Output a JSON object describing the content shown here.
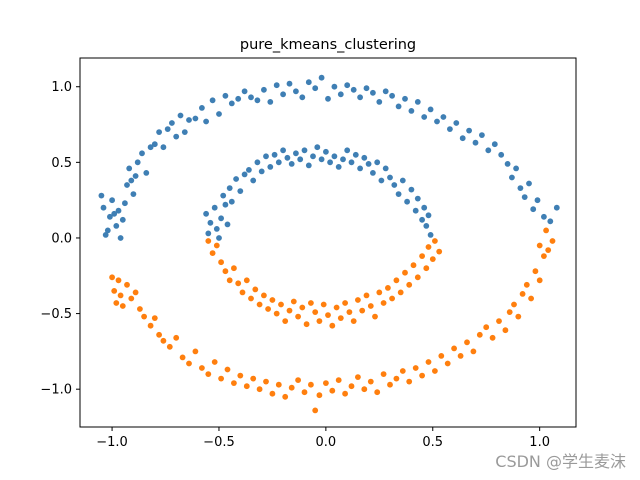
{
  "chart_data": {
    "type": "scatter",
    "title": "pure_kmeans_clustering",
    "xlabel": "",
    "ylabel": "",
    "xlim": [
      -1.15,
      1.17
    ],
    "ylim": [
      -1.25,
      1.19
    ],
    "x_ticks": [
      -1.0,
      -0.5,
      0.0,
      0.5,
      1.0
    ],
    "x_tick_labels": [
      "−1.0",
      "−0.5",
      "0.0",
      "0.5",
      "1.0"
    ],
    "y_ticks": [
      -1.0,
      -0.5,
      0.0,
      0.5,
      1.0
    ],
    "y_tick_labels": [
      "−1.0",
      "−0.5",
      "0.0",
      "0.5",
      "1.0"
    ],
    "grid": false,
    "legend": "none",
    "series": [
      {
        "color": "#3f7fb4",
        "points": [
          [
            -1.05,
            0.28
          ],
          [
            -1.04,
            0.2
          ],
          [
            -1.03,
            0.02
          ],
          [
            -1.02,
            0.05
          ],
          [
            -1.01,
            0.14
          ],
          [
            -1.0,
            0.25
          ],
          [
            -0.99,
            0.16
          ],
          [
            -0.98,
            0.08
          ],
          [
            -0.97,
            0.18
          ],
          [
            -0.96,
            0.0
          ],
          [
            -0.95,
            0.12
          ],
          [
            -0.94,
            0.23
          ],
          [
            -0.93,
            0.35
          ],
          [
            -0.92,
            0.46
          ],
          [
            -0.91,
            0.38
          ],
          [
            -0.9,
            0.29
          ],
          [
            -0.89,
            0.41
          ],
          [
            -0.88,
            0.5
          ],
          [
            -0.86,
            0.56
          ],
          [
            -0.84,
            0.43
          ],
          [
            -0.82,
            0.6
          ],
          [
            -0.8,
            0.62
          ],
          [
            -0.78,
            0.7
          ],
          [
            -0.76,
            0.6
          ],
          [
            -0.74,
            0.72
          ],
          [
            -0.72,
            0.76
          ],
          [
            -0.7,
            0.67
          ],
          [
            -0.68,
            0.81
          ],
          [
            -0.66,
            0.7
          ],
          [
            -0.64,
            0.78
          ],
          [
            -0.61,
            0.79
          ],
          [
            -0.58,
            0.86
          ],
          [
            -0.56,
            0.77
          ],
          [
            -0.53,
            0.91
          ],
          [
            -0.5,
            0.82
          ],
          [
            -0.47,
            0.94
          ],
          [
            -0.44,
            0.89
          ],
          [
            -0.41,
            0.92
          ],
          [
            -0.38,
            0.97
          ],
          [
            -0.35,
            0.93
          ],
          [
            -0.32,
            0.91
          ],
          [
            -0.29,
            0.98
          ],
          [
            -0.26,
            0.9
          ],
          [
            -0.23,
            1.01
          ],
          [
            -0.2,
            0.95
          ],
          [
            -0.17,
            1.02
          ],
          [
            -0.14,
            0.97
          ],
          [
            -0.11,
            0.93
          ],
          [
            -0.08,
            1.03
          ],
          [
            -0.05,
            0.99
          ],
          [
            -0.02,
            1.06
          ],
          [
            0.01,
            0.92
          ],
          [
            0.04,
            1.0
          ],
          [
            0.07,
            0.95
          ],
          [
            0.1,
            1.01
          ],
          [
            0.13,
            0.98
          ],
          [
            0.16,
            0.93
          ],
          [
            0.19,
            0.99
          ],
          [
            0.22,
            0.96
          ],
          [
            0.25,
            0.9
          ],
          [
            0.28,
            0.97
          ],
          [
            0.31,
            0.94
          ],
          [
            0.34,
            0.87
          ],
          [
            0.37,
            0.92
          ],
          [
            0.4,
            0.84
          ],
          [
            0.43,
            0.9
          ],
          [
            0.46,
            0.8
          ],
          [
            0.49,
            0.85
          ],
          [
            0.52,
            0.77
          ],
          [
            0.55,
            0.8
          ],
          [
            0.58,
            0.72
          ],
          [
            0.61,
            0.76
          ],
          [
            0.64,
            0.66
          ],
          [
            0.67,
            0.71
          ],
          [
            0.7,
            0.63
          ],
          [
            0.73,
            0.68
          ],
          [
            0.76,
            0.58
          ],
          [
            0.79,
            0.62
          ],
          [
            0.82,
            0.55
          ],
          [
            0.85,
            0.49
          ],
          [
            0.87,
            0.4
          ],
          [
            0.89,
            0.46
          ],
          [
            0.91,
            0.33
          ],
          [
            0.93,
            0.27
          ],
          [
            0.95,
            0.36
          ],
          [
            0.97,
            0.19
          ],
          [
            0.99,
            0.25
          ],
          [
            1.02,
            0.14
          ],
          [
            1.05,
            0.11
          ],
          [
            1.08,
            0.2
          ],
          [
            -0.56,
            0.16
          ],
          [
            -0.55,
            0.03
          ],
          [
            -0.54,
            0.1
          ],
          [
            -0.52,
            0.2
          ],
          [
            -0.51,
            0.06
          ],
          [
            -0.5,
            0.0
          ],
          [
            -0.49,
            0.13
          ],
          [
            -0.48,
            0.28
          ],
          [
            -0.47,
            0.22
          ],
          [
            -0.46,
            0.09
          ],
          [
            -0.45,
            0.33
          ],
          [
            -0.44,
            0.24
          ],
          [
            -0.42,
            0.39
          ],
          [
            -0.4,
            0.31
          ],
          [
            -0.38,
            0.42
          ],
          [
            -0.36,
            0.45
          ],
          [
            -0.34,
            0.38
          ],
          [
            -0.32,
            0.5
          ],
          [
            -0.3,
            0.44
          ],
          [
            -0.28,
            0.54
          ],
          [
            -0.26,
            0.47
          ],
          [
            -0.24,
            0.55
          ],
          [
            -0.22,
            0.5
          ],
          [
            -0.2,
            0.58
          ],
          [
            -0.18,
            0.53
          ],
          [
            -0.16,
            0.49
          ],
          [
            -0.14,
            0.56
          ],
          [
            -0.12,
            0.52
          ],
          [
            -0.1,
            0.58
          ],
          [
            -0.08,
            0.48
          ],
          [
            -0.06,
            0.54
          ],
          [
            -0.04,
            0.6
          ],
          [
            -0.02,
            0.52
          ],
          [
            0.0,
            0.57
          ],
          [
            0.02,
            0.5
          ],
          [
            0.04,
            0.54
          ],
          [
            0.06,
            0.47
          ],
          [
            0.08,
            0.52
          ],
          [
            0.1,
            0.58
          ],
          [
            0.12,
            0.5
          ],
          [
            0.14,
            0.55
          ],
          [
            0.16,
            0.46
          ],
          [
            0.18,
            0.53
          ],
          [
            0.2,
            0.49
          ],
          [
            0.22,
            0.43
          ],
          [
            0.24,
            0.5
          ],
          [
            0.26,
            0.38
          ],
          [
            0.28,
            0.46
          ],
          [
            0.3,
            0.4
          ],
          [
            0.32,
            0.35
          ],
          [
            0.34,
            0.29
          ],
          [
            0.36,
            0.38
          ],
          [
            0.38,
            0.24
          ],
          [
            0.4,
            0.32
          ],
          [
            0.42,
            0.18
          ],
          [
            0.43,
            0.26
          ],
          [
            0.45,
            0.12
          ],
          [
            0.46,
            0.2
          ],
          [
            0.47,
            0.08
          ],
          [
            0.48,
            0.15
          ],
          [
            0.49,
            0.02
          ]
        ]
      },
      {
        "color": "#ff7f0e",
        "points": [
          [
            -1.0,
            -0.26
          ],
          [
            -0.99,
            -0.35
          ],
          [
            -0.98,
            -0.43
          ],
          [
            -0.97,
            -0.28
          ],
          [
            -0.96,
            -0.38
          ],
          [
            -0.95,
            -0.45
          ],
          [
            -0.93,
            -0.31
          ],
          [
            -0.91,
            -0.4
          ],
          [
            -0.89,
            -0.36
          ],
          [
            -0.87,
            -0.47
          ],
          [
            -0.85,
            -0.52
          ],
          [
            -0.82,
            -0.58
          ],
          [
            -0.8,
            -0.53
          ],
          [
            -0.78,
            -0.64
          ],
          [
            -0.76,
            -0.68
          ],
          [
            -0.73,
            -0.72
          ],
          [
            -0.7,
            -0.66
          ],
          [
            -0.67,
            -0.79
          ],
          [
            -0.64,
            -0.83
          ],
          [
            -0.61,
            -0.75
          ],
          [
            -0.58,
            -0.86
          ],
          [
            -0.55,
            -0.9
          ],
          [
            -0.52,
            -0.82
          ],
          [
            -0.49,
            -0.93
          ],
          [
            -0.46,
            -0.87
          ],
          [
            -0.43,
            -0.96
          ],
          [
            -0.4,
            -0.91
          ],
          [
            -0.37,
            -0.98
          ],
          [
            -0.34,
            -0.93
          ],
          [
            -0.31,
            -1.0
          ],
          [
            -0.28,
            -0.95
          ],
          [
            -0.25,
            -1.03
          ],
          [
            -0.22,
            -0.97
          ],
          [
            -0.19,
            -1.05
          ],
          [
            -0.16,
            -0.99
          ],
          [
            -0.13,
            -0.94
          ],
          [
            -0.1,
            -1.02
          ],
          [
            -0.07,
            -0.97
          ],
          [
            -0.05,
            -1.14
          ],
          [
            -0.03,
            -1.04
          ],
          [
            0.0,
            -0.96
          ],
          [
            0.03,
            -1.01
          ],
          [
            0.06,
            -0.94
          ],
          [
            0.09,
            -1.03
          ],
          [
            0.12,
            -0.98
          ],
          [
            0.15,
            -0.92
          ],
          [
            0.18,
            -1.0
          ],
          [
            0.21,
            -0.95
          ],
          [
            0.24,
            -1.02
          ],
          [
            0.27,
            -0.9
          ],
          [
            0.3,
            -0.97
          ],
          [
            0.33,
            -0.93
          ],
          [
            0.36,
            -0.88
          ],
          [
            0.39,
            -0.95
          ],
          [
            0.42,
            -0.86
          ],
          [
            0.45,
            -0.91
          ],
          [
            0.48,
            -0.82
          ],
          [
            0.51,
            -0.88
          ],
          [
            0.54,
            -0.78
          ],
          [
            0.57,
            -0.83
          ],
          [
            0.6,
            -0.73
          ],
          [
            0.63,
            -0.78
          ],
          [
            0.66,
            -0.69
          ],
          [
            0.69,
            -0.75
          ],
          [
            0.72,
            -0.64
          ],
          [
            0.75,
            -0.59
          ],
          [
            0.78,
            -0.66
          ],
          [
            0.81,
            -0.55
          ],
          [
            0.84,
            -0.61
          ],
          [
            0.86,
            -0.49
          ],
          [
            0.88,
            -0.44
          ],
          [
            0.9,
            -0.52
          ],
          [
            0.92,
            -0.37
          ],
          [
            0.94,
            -0.31
          ],
          [
            0.96,
            -0.4
          ],
          [
            0.98,
            -0.22
          ],
          [
            1.0,
            -0.28
          ],
          [
            1.02,
            -0.12
          ],
          [
            1.04,
            -0.08
          ],
          [
            1.06,
            -0.02
          ],
          [
            1.03,
            0.05
          ],
          [
            1.0,
            -0.05
          ],
          [
            -0.55,
            -0.02
          ],
          [
            -0.53,
            -0.1
          ],
          [
            -0.51,
            -0.05
          ],
          [
            -0.49,
            -0.16
          ],
          [
            -0.47,
            -0.22
          ],
          [
            -0.45,
            -0.28
          ],
          [
            -0.43,
            -0.2
          ],
          [
            -0.41,
            -0.3
          ],
          [
            -0.39,
            -0.36
          ],
          [
            -0.37,
            -0.28
          ],
          [
            -0.35,
            -0.4
          ],
          [
            -0.33,
            -0.34
          ],
          [
            -0.31,
            -0.44
          ],
          [
            -0.29,
            -0.38
          ],
          [
            -0.27,
            -0.47
          ],
          [
            -0.25,
            -0.41
          ],
          [
            -0.23,
            -0.5
          ],
          [
            -0.21,
            -0.44
          ],
          [
            -0.19,
            -0.55
          ],
          [
            -0.17,
            -0.48
          ],
          [
            -0.15,
            -0.42
          ],
          [
            -0.13,
            -0.52
          ],
          [
            -0.11,
            -0.46
          ],
          [
            -0.09,
            -0.57
          ],
          [
            -0.07,
            -0.43
          ],
          [
            -0.05,
            -0.49
          ],
          [
            -0.03,
            -0.55
          ],
          [
            -0.01,
            -0.44
          ],
          [
            0.01,
            -0.51
          ],
          [
            0.03,
            -0.58
          ],
          [
            0.05,
            -0.46
          ],
          [
            0.07,
            -0.53
          ],
          [
            0.09,
            -0.43
          ],
          [
            0.11,
            -0.49
          ],
          [
            0.13,
            -0.55
          ],
          [
            0.15,
            -0.41
          ],
          [
            0.17,
            -0.48
          ],
          [
            0.19,
            -0.38
          ],
          [
            0.21,
            -0.45
          ],
          [
            0.23,
            -0.52
          ],
          [
            0.25,
            -0.36
          ],
          [
            0.27,
            -0.43
          ],
          [
            0.29,
            -0.33
          ],
          [
            0.31,
            -0.4
          ],
          [
            0.33,
            -0.28
          ],
          [
            0.35,
            -0.36
          ],
          [
            0.37,
            -0.23
          ],
          [
            0.39,
            -0.31
          ],
          [
            0.41,
            -0.18
          ],
          [
            0.43,
            -0.26
          ],
          [
            0.45,
            -0.12
          ],
          [
            0.47,
            -0.2
          ],
          [
            0.48,
            -0.06
          ],
          [
            0.5,
            -0.14
          ],
          [
            0.51,
            -0.02
          ],
          [
            0.53,
            -0.09
          ]
        ]
      }
    ]
  },
  "watermark": "CSDN @学生麦沫"
}
